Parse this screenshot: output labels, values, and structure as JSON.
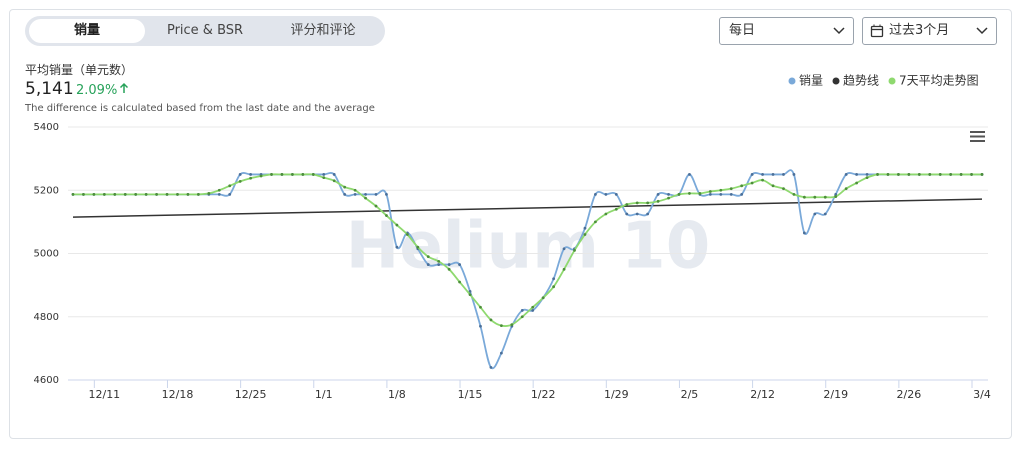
{
  "tabs": [
    "销量",
    "Price & BSR",
    "评分和评论"
  ],
  "period_select": "每日",
  "range_select": "过去3个月",
  "summary": {
    "title": "平均销量（单元数）",
    "value": "5,141",
    "change": "2.09%",
    "note": "The difference is calculated based from the last date and the average"
  },
  "watermark": "Helium 10",
  "chart_data": {
    "type": "line",
    "categories": [
      null,
      null,
      null,
      "12/11",
      null,
      null,
      null,
      null,
      null,
      null,
      "12/18",
      null,
      null,
      null,
      null,
      null,
      null,
      "12/25",
      null,
      null,
      null,
      null,
      null,
      null,
      "1/1",
      null,
      null,
      null,
      null,
      null,
      null,
      "1/8",
      null,
      null,
      null,
      null,
      null,
      null,
      "1/15",
      null,
      null,
      null,
      null,
      null,
      null,
      "1/22",
      null,
      null,
      null,
      null,
      null,
      null,
      "1/29",
      null,
      null,
      null,
      null,
      null,
      null,
      "2/5",
      null,
      null,
      null,
      null,
      null,
      null,
      "2/12",
      null,
      null,
      null,
      null,
      null,
      null,
      "2/19",
      null,
      null,
      null,
      null,
      null,
      null,
      "2/26",
      null,
      null,
      null,
      null,
      null,
      null,
      "3/4"
    ],
    "series": [
      {
        "name": "销量",
        "color": "#7aa9d9",
        "values": [
          5187,
          5187,
          5187,
          5187,
          5187,
          5187,
          5187,
          5187,
          5187,
          5187,
          5187,
          5187,
          5187,
          5187,
          5187,
          5187,
          5250,
          5250,
          5250,
          5250,
          5250,
          5250,
          5250,
          5250,
          5250,
          5250,
          5187,
          5187,
          5187,
          5187,
          5187,
          5020,
          5065,
          5015,
          4965,
          4965,
          4965,
          4965,
          4880,
          4770,
          4640,
          4685,
          4770,
          4820,
          4820,
          4860,
          4920,
          5015,
          5015,
          5080,
          5187,
          5187,
          5187,
          5125,
          5125,
          5125,
          5187,
          5187,
          5187,
          5250,
          5187,
          5187,
          5187,
          5187,
          5187,
          5250,
          5250,
          5250,
          5250,
          5250,
          5065,
          5125,
          5125,
          5187,
          5250,
          5250,
          5250,
          5250,
          5250,
          5250,
          5250,
          5250,
          5250,
          5250,
          5250,
          5250,
          5250,
          5250
        ]
      },
      {
        "name": "7天平均走势图",
        "color": "#8fd96f",
        "values": [
          5187,
          5187,
          5187,
          5187,
          5187,
          5187,
          5187,
          5187,
          5187,
          5187,
          5187,
          5187,
          5187,
          5190,
          5200,
          5214,
          5228,
          5238,
          5245,
          5250,
          5250,
          5250,
          5250,
          5250,
          5240,
          5230,
          5210,
          5200,
          5175,
          5150,
          5120,
          5090,
          5060,
          5020,
          4990,
          4975,
          4950,
          4910,
          4870,
          4830,
          4790,
          4772,
          4775,
          4800,
          4830,
          4860,
          4895,
          4950,
          5010,
          5060,
          5100,
          5125,
          5140,
          5155,
          5160,
          5160,
          5165,
          5175,
          5187,
          5190,
          5190,
          5196,
          5200,
          5205,
          5214,
          5223,
          5232,
          5214,
          5205,
          5187,
          5178,
          5178,
          5178,
          5180,
          5205,
          5223,
          5240,
          5250,
          5250,
          5250,
          5250,
          5250,
          5250,
          5250,
          5250,
          5250,
          5250,
          5250
        ]
      }
    ],
    "trendline": {
      "name": "趋势线",
      "color": "#333333",
      "start": 5115,
      "end": 5172
    },
    "ylim": [
      4600,
      5400
    ],
    "yticks": [
      4600,
      4800,
      5000,
      5200,
      5400
    ],
    "grid": true
  }
}
